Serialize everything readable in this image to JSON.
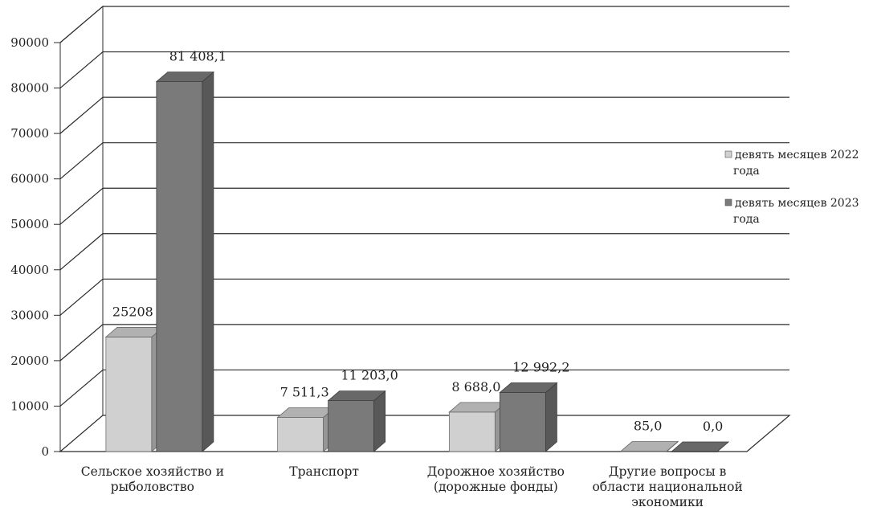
{
  "chart_data": {
    "type": "bar",
    "title": "",
    "xlabel": "",
    "ylabel": "",
    "ylim": [
      0,
      90000
    ],
    "yticks": [
      "0",
      "10000",
      "20000",
      "30000",
      "40000",
      "50000",
      "60000",
      "70000",
      "80000",
      "90000"
    ],
    "grid": true,
    "legend_position": "right",
    "categories": [
      [
        "Сельское хозяйство и",
        "рыболовство"
      ],
      [
        "Транспорт"
      ],
      [
        "Дорожное хозяйство",
        "(дорожные фонды)"
      ],
      [
        "Другие вопросы в",
        "области национальной",
        "экономики"
      ]
    ],
    "series": [
      {
        "name": [
          "девять месяцев 2022",
          "года"
        ],
        "values": [
          25208,
          7511.3,
          8688.0,
          85.0
        ],
        "labels": [
          "25208",
          "7 511,3",
          "8 688,0",
          "85,0"
        ],
        "color": "#d0d0d0"
      },
      {
        "name": [
          "девять месяцев 2023",
          "года"
        ],
        "values": [
          81408.1,
          11203.0,
          12992.2,
          0.0
        ],
        "labels": [
          "81 408,1",
          "11 203,0",
          "12 992,2",
          "0,0"
        ],
        "color": "#7a7a7a"
      }
    ]
  }
}
